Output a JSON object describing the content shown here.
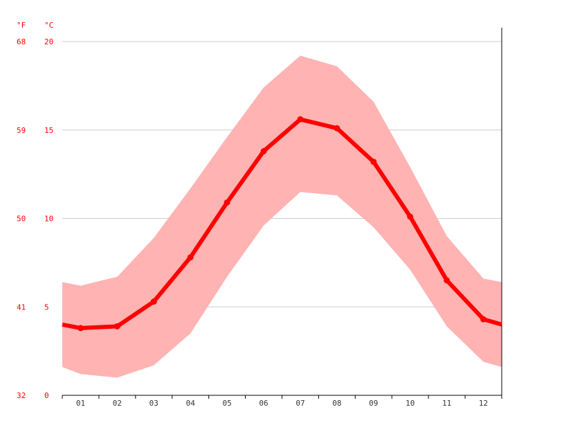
{
  "chart_data": {
    "type": "line",
    "title": "",
    "xlabel": "",
    "ylabel": "",
    "unit_left": "°F",
    "unit_right": "°C",
    "categories": [
      "01",
      "02",
      "03",
      "04",
      "05",
      "06",
      "07",
      "08",
      "09",
      "10",
      "11",
      "12"
    ],
    "ylim": [
      0,
      20
    ],
    "yticks_c": [
      0,
      5,
      10,
      15,
      20
    ],
    "yticks_c_labels": [
      "0",
      "5",
      "10",
      "15",
      "20"
    ],
    "yticks_f_labels": [
      "32",
      "41",
      "50",
      "59",
      "68"
    ],
    "grid": "horizontal",
    "legend": "none",
    "series": [
      {
        "role": "average",
        "values": [
          3.8,
          3.9,
          5.3,
          7.8,
          10.9,
          13.8,
          15.6,
          15.1,
          13.2,
          10.1,
          6.5,
          4.3
        ]
      },
      {
        "role": "max",
        "values": [
          6.2,
          6.7,
          8.9,
          11.7,
          14.6,
          17.4,
          19.2,
          18.6,
          16.6,
          12.9,
          9.0,
          6.6
        ]
      },
      {
        "role": "min",
        "values": [
          1.2,
          1.0,
          1.7,
          3.5,
          6.7,
          9.6,
          11.5,
          11.3,
          9.5,
          7.1,
          3.9,
          1.9
        ]
      }
    ],
    "edge_values": {
      "average": [
        4.0,
        4.0
      ],
      "max": [
        6.4,
        6.4
      ],
      "min": [
        1.6,
        1.6
      ]
    },
    "colors": {
      "line": "#ff0000",
      "band": "#ffb3b3",
      "grid": "#cccccc",
      "axis": "#000000",
      "label": "#ff0000",
      "xlabel": "#333333"
    }
  }
}
